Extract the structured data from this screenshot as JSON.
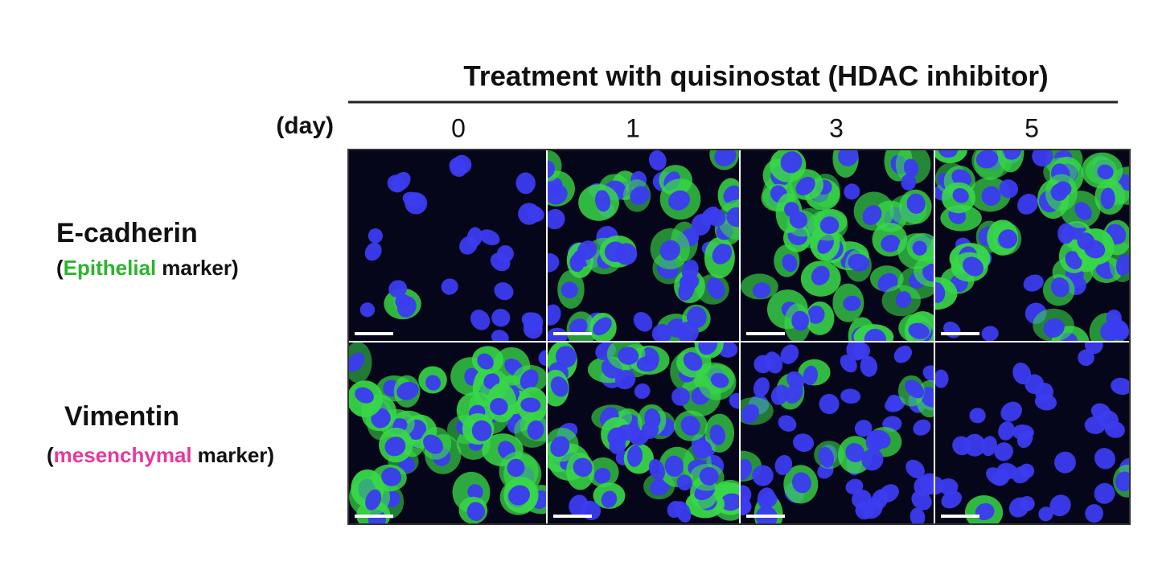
{
  "header": {
    "title": "Treatment with quisinostat (HDAC inhibitor)",
    "day_label": "(day)",
    "days": [
      "0",
      "1",
      "3",
      "5"
    ]
  },
  "rows": [
    {
      "marker": "E-cadherin",
      "note": [
        "(",
        "Epithelial",
        "marker)"
      ]
    },
    {
      "marker": "Vimentin",
      "note": [
        "(",
        "mesenchymal",
        "marker)"
      ]
    }
  ]
}
